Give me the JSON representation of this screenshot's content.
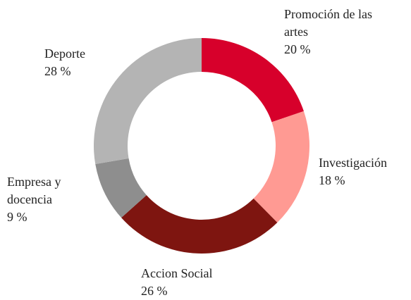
{
  "chart_data": {
    "type": "donut",
    "categories": [
      "Promoción de las artes",
      "Investigación",
      "Accion Social",
      "Empresa y docencia",
      "Deporte"
    ],
    "values": [
      20,
      18,
      26,
      9,
      28
    ],
    "value_labels": [
      "20 %",
      "18 %",
      "26 %",
      "9 %",
      "28 %"
    ],
    "colors": [
      "#d7002b",
      "#ff9a93",
      "#7e1510",
      "#8e8e8e",
      "#b4b4b4"
    ]
  }
}
